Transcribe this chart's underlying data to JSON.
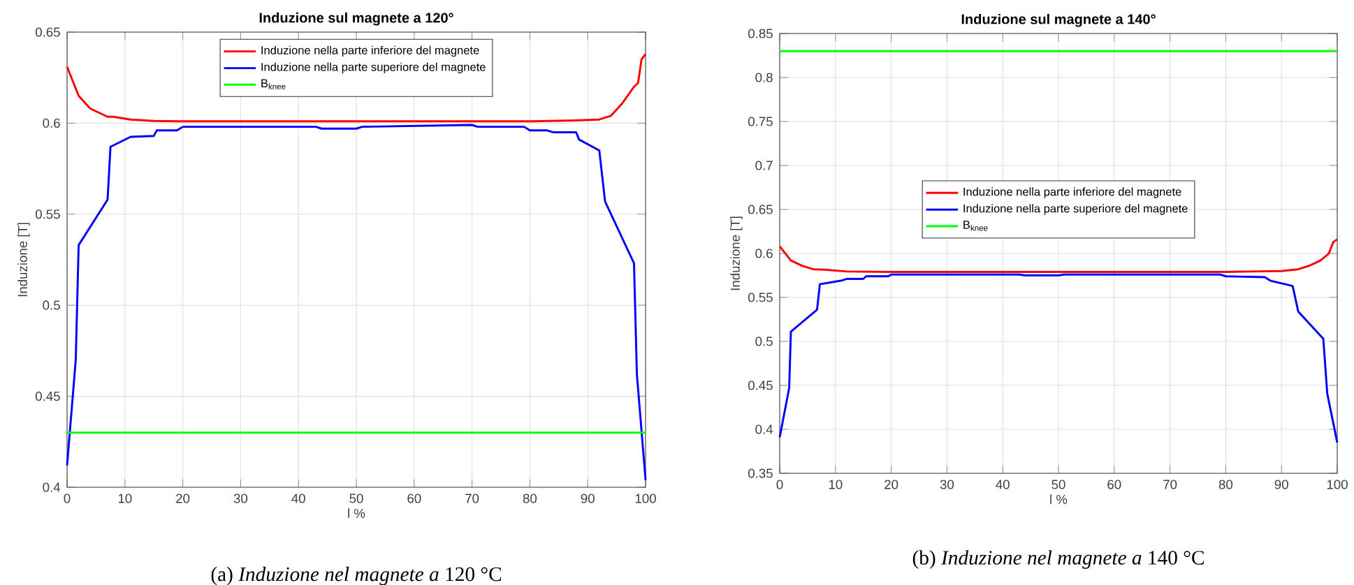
{
  "chart_data": [
    {
      "type": "line",
      "title": "Induzione sul magnete a 120°",
      "xlabel": "l %",
      "ylabel": "Induzione [T]",
      "xlim": [
        0,
        100
      ],
      "ylim": [
        0.4,
        0.65
      ],
      "xticks": [
        0,
        10,
        20,
        30,
        40,
        50,
        60,
        70,
        80,
        90,
        100
      ],
      "yticks": [
        0.4,
        0.45,
        0.5,
        0.55,
        0.6,
        0.65
      ],
      "grid": true,
      "legend": "top",
      "annotations": [
        "(a) *Induzione nel magnete a* 120 °C"
      ],
      "series": [
        {
          "name": "Induzione nella parte inferiore del magnete",
          "color": "#ff0000",
          "x": [
            0,
            1,
            2,
            4,
            7,
            8,
            11,
            15,
            20,
            50,
            80,
            88,
            92,
            94,
            96,
            98,
            98.7,
            99.3,
            100
          ],
          "values": [
            0.631,
            0.623,
            0.615,
            0.608,
            0.6035,
            0.6035,
            0.602,
            0.6012,
            0.601,
            0.601,
            0.601,
            0.6015,
            0.602,
            0.604,
            0.611,
            0.62,
            0.622,
            0.635,
            0.638
          ]
        },
        {
          "name": "Induzione nella parte superiore del magnete",
          "color": "#0000ff",
          "x": [
            0,
            1.5,
            2,
            7,
            7.5,
            11,
            15,
            15.5,
            19,
            20,
            43,
            44,
            50,
            51,
            70,
            71,
            79,
            80,
            83,
            84,
            88,
            88.5,
            92,
            93,
            98,
            98.5,
            100
          ],
          "values": [
            0.412,
            0.47,
            0.533,
            0.558,
            0.587,
            0.5925,
            0.593,
            0.596,
            0.596,
            0.598,
            0.598,
            0.597,
            0.597,
            0.598,
            0.599,
            0.598,
            0.598,
            0.596,
            0.596,
            0.595,
            0.595,
            0.591,
            0.585,
            0.557,
            0.523,
            0.462,
            0.404
          ]
        },
        {
          "name": "B$_{knee}$",
          "color": "#00ff00",
          "x": [
            0,
            100
          ],
          "values": [
            0.43,
            0.43
          ]
        }
      ]
    },
    {
      "type": "line",
      "title": "Induzione sul magnete a 140°",
      "xlabel": "l %",
      "ylabel": "Induzione [T]",
      "xlim": [
        0,
        100
      ],
      "ylim": [
        0.35,
        0.85
      ],
      "xticks": [
        0,
        10,
        20,
        30,
        40,
        50,
        60,
        70,
        80,
        90,
        100
      ],
      "yticks": [
        0.35,
        0.4,
        0.45,
        0.5,
        0.55,
        0.6,
        0.65,
        0.7,
        0.75,
        0.8,
        0.85
      ],
      "grid": true,
      "legend": "center",
      "annotations": [
        "(b) *Induzione nel magnete a* 140 °C"
      ],
      "series": [
        {
          "name": "Induzione nella parte inferiore del magnete",
          "color": "#ff0000",
          "x": [
            0,
            1,
            2,
            4,
            6,
            8,
            12,
            20,
            80,
            90,
            93,
            95,
            97,
            98.5,
            99.3,
            100
          ],
          "values": [
            0.608,
            0.6,
            0.592,
            0.586,
            0.582,
            0.5815,
            0.5795,
            0.579,
            0.579,
            0.58,
            0.582,
            0.586,
            0.592,
            0.6,
            0.613,
            0.616
          ]
        },
        {
          "name": "Induzione nella parte superiore del magnete",
          "color": "#0000ff",
          "x": [
            0,
            1.7,
            2,
            6.7,
            7.2,
            11,
            12,
            15,
            15.5,
            19.5,
            20,
            43,
            44,
            50,
            51,
            79,
            80,
            87,
            88,
            92,
            93,
            97.5,
            98.2,
            100
          ],
          "values": [
            0.391,
            0.447,
            0.511,
            0.536,
            0.565,
            0.569,
            0.571,
            0.571,
            0.574,
            0.574,
            0.576,
            0.576,
            0.575,
            0.575,
            0.576,
            0.576,
            0.574,
            0.573,
            0.569,
            0.563,
            0.534,
            0.503,
            0.441,
            0.385
          ]
        },
        {
          "name": "B$_{knee}$",
          "color": "#00ff00",
          "x": [
            0,
            100
          ],
          "values": [
            0.83,
            0.83
          ]
        }
      ]
    }
  ]
}
